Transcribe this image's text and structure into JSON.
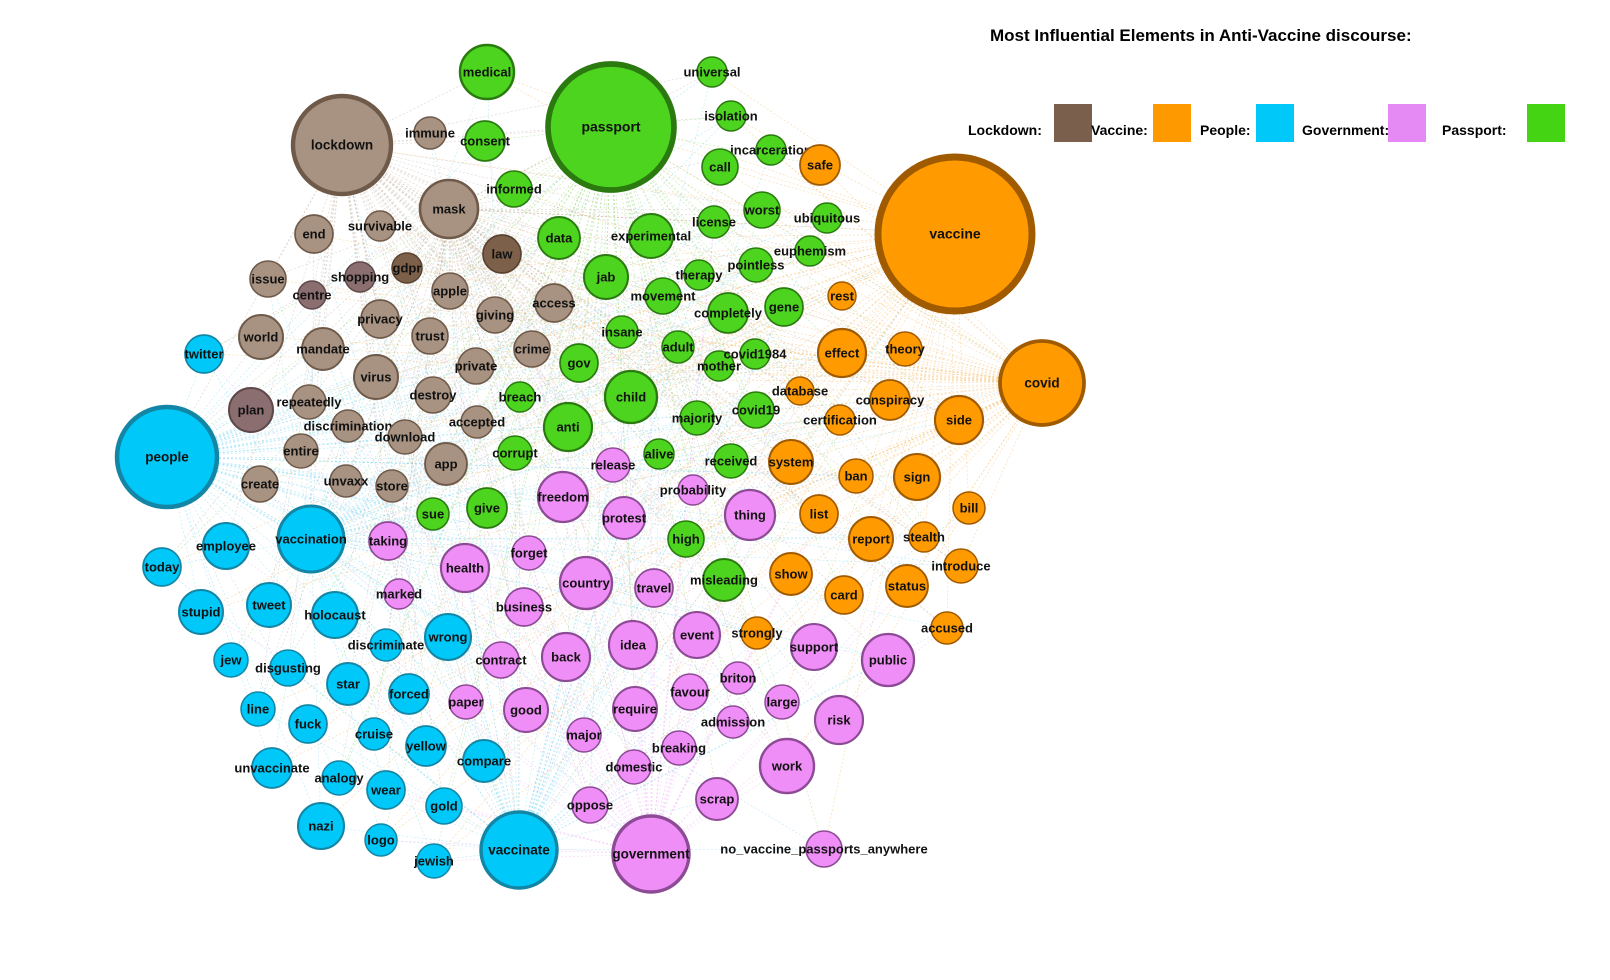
{
  "title": "Most Influential Elements in Anti-Vaccine discourse:",
  "legend": [
    {
      "label": "Lockdown:",
      "color": "#7a5f4d"
    },
    {
      "label": "Vaccine:",
      "color": "#ff9900"
    },
    {
      "label": "People:",
      "color": "#00c8f8"
    },
    {
      "label": "Government:",
      "color": "#e58af5"
    },
    {
      "label": "Passport:",
      "color": "#44d414"
    }
  ],
  "groups": {
    "lockdown": {
      "fill": "#a89382",
      "stroke": "#6f5a4a"
    },
    "lockdown_dark": {
      "fill": "#7d6049",
      "stroke": "#5a4230"
    },
    "lockdown_mauve": {
      "fill": "#8a6e70",
      "stroke": "#5e4748"
    },
    "vaccine": {
      "fill": "#ff9a00",
      "stroke": "#a05a00"
    },
    "people": {
      "fill": "#00c8f8",
      "stroke": "#1386a6"
    },
    "government": {
      "fill": "#f08ef7",
      "stroke": "#8d4b95"
    },
    "passport": {
      "fill": "#4cd41e",
      "stroke": "#2a7a10"
    }
  },
  "nodes": [
    {
      "label": "passport",
      "group": "passport"
    },
    {
      "label": "medical",
      "group": "passport"
    },
    {
      "label": "universal",
      "group": "passport"
    },
    {
      "label": "isolation",
      "group": "passport"
    },
    {
      "label": "consent",
      "group": "passport"
    },
    {
      "label": "incarceration",
      "group": "passport"
    },
    {
      "label": "call",
      "group": "passport"
    },
    {
      "label": "informed",
      "group": "passport"
    },
    {
      "label": "worst",
      "group": "passport"
    },
    {
      "label": "ubiquitous",
      "group": "passport"
    },
    {
      "label": "license",
      "group": "passport"
    },
    {
      "label": "data",
      "group": "passport"
    },
    {
      "label": "experimental",
      "group": "passport"
    },
    {
      "label": "euphemism",
      "group": "passport"
    },
    {
      "label": "pointless",
      "group": "passport"
    },
    {
      "label": "therapy",
      "group": "passport"
    },
    {
      "label": "jab",
      "group": "passport"
    },
    {
      "label": "movement",
      "group": "passport"
    },
    {
      "label": "gene",
      "group": "passport"
    },
    {
      "label": "completely",
      "group": "passport"
    },
    {
      "label": "insane",
      "group": "passport"
    },
    {
      "label": "adult",
      "group": "passport"
    },
    {
      "label": "gov",
      "group": "passport"
    },
    {
      "label": "mother",
      "group": "passport"
    },
    {
      "label": "covid1984",
      "group": "passport"
    },
    {
      "label": "child",
      "group": "passport"
    },
    {
      "label": "breach",
      "group": "passport"
    },
    {
      "label": "majority",
      "group": "passport"
    },
    {
      "label": "covid19",
      "group": "passport"
    },
    {
      "label": "anti",
      "group": "passport"
    },
    {
      "label": "corrupt",
      "group": "passport"
    },
    {
      "label": "alive",
      "group": "passport"
    },
    {
      "label": "received",
      "group": "passport"
    },
    {
      "label": "sue",
      "group": "passport"
    },
    {
      "label": "give",
      "group": "passport"
    },
    {
      "label": "high",
      "group": "passport"
    },
    {
      "label": "misleading",
      "group": "passport"
    },
    {
      "label": "vaccine",
      "group": "vaccine"
    },
    {
      "label": "covid",
      "group": "vaccine"
    },
    {
      "label": "safe",
      "group": "vaccine"
    },
    {
      "label": "rest",
      "group": "vaccine"
    },
    {
      "label": "effect",
      "group": "vaccine"
    },
    {
      "label": "theory",
      "group": "vaccine"
    },
    {
      "label": "database",
      "group": "vaccine"
    },
    {
      "label": "conspiracy",
      "group": "vaccine"
    },
    {
      "label": "side",
      "group": "vaccine"
    },
    {
      "label": "certification",
      "group": "vaccine"
    },
    {
      "label": "system",
      "group": "vaccine"
    },
    {
      "label": "ban",
      "group": "vaccine"
    },
    {
      "label": "sign",
      "group": "vaccine"
    },
    {
      "label": "bill",
      "group": "vaccine"
    },
    {
      "label": "list",
      "group": "vaccine"
    },
    {
      "label": "report",
      "group": "vaccine"
    },
    {
      "label": "stealth",
      "group": "vaccine"
    },
    {
      "label": "introduce",
      "group": "vaccine"
    },
    {
      "label": "show",
      "group": "vaccine"
    },
    {
      "label": "card",
      "group": "vaccine"
    },
    {
      "label": "status",
      "group": "vaccine"
    },
    {
      "label": "accused",
      "group": "vaccine"
    },
    {
      "label": "strongly",
      "group": "vaccine"
    },
    {
      "label": "lockdown",
      "group": "lockdown"
    },
    {
      "label": "immune",
      "group": "lockdown"
    },
    {
      "label": "mask",
      "group": "lockdown"
    },
    {
      "label": "end",
      "group": "lockdown"
    },
    {
      "label": "survivable",
      "group": "lockdown"
    },
    {
      "label": "law",
      "group": "lockdown_dark"
    },
    {
      "label": "issue",
      "group": "lockdown"
    },
    {
      "label": "centre",
      "group": "lockdown_mauve"
    },
    {
      "label": "shopping",
      "group": "lockdown_mauve"
    },
    {
      "label": "gdpr",
      "group": "lockdown_dark"
    },
    {
      "label": "apple",
      "group": "lockdown"
    },
    {
      "label": "access",
      "group": "lockdown"
    },
    {
      "label": "privacy",
      "group": "lockdown"
    },
    {
      "label": "giving",
      "group": "lockdown"
    },
    {
      "label": "world",
      "group": "lockdown"
    },
    {
      "label": "mandate",
      "group": "lockdown"
    },
    {
      "label": "trust",
      "group": "lockdown"
    },
    {
      "label": "crime",
      "group": "lockdown"
    },
    {
      "label": "virus",
      "group": "lockdown"
    },
    {
      "label": "private",
      "group": "lockdown"
    },
    {
      "label": "plan",
      "group": "lockdown_mauve"
    },
    {
      "label": "repeatedly",
      "group": "lockdown"
    },
    {
      "label": "destroy",
      "group": "lockdown"
    },
    {
      "label": "discrimination",
      "group": "lockdown"
    },
    {
      "label": "accepted",
      "group": "lockdown"
    },
    {
      "label": "download",
      "group": "lockdown"
    },
    {
      "label": "entire",
      "group": "lockdown"
    },
    {
      "label": "app",
      "group": "lockdown"
    },
    {
      "label": "unvaxx",
      "group": "lockdown"
    },
    {
      "label": "create",
      "group": "lockdown"
    },
    {
      "label": "store",
      "group": "lockdown"
    },
    {
      "label": "people",
      "group": "people"
    },
    {
      "label": "twitter",
      "group": "people"
    },
    {
      "label": "vaccination",
      "group": "people"
    },
    {
      "label": "employee",
      "group": "people"
    },
    {
      "label": "today",
      "group": "people"
    },
    {
      "label": "stupid",
      "group": "people"
    },
    {
      "label": "tweet",
      "group": "people"
    },
    {
      "label": "holocaust",
      "group": "people"
    },
    {
      "label": "wrong",
      "group": "people"
    },
    {
      "label": "discriminate",
      "group": "people"
    },
    {
      "label": "jew",
      "group": "people"
    },
    {
      "label": "disgusting",
      "group": "people"
    },
    {
      "label": "star",
      "group": "people"
    },
    {
      "label": "forced",
      "group": "people"
    },
    {
      "label": "line",
      "group": "people"
    },
    {
      "label": "fuck",
      "group": "people"
    },
    {
      "label": "cruise",
      "group": "people"
    },
    {
      "label": "yellow",
      "group": "people"
    },
    {
      "label": "compare",
      "group": "people"
    },
    {
      "label": "unvaccinate",
      "group": "people"
    },
    {
      "label": "analogy",
      "group": "people"
    },
    {
      "label": "wear",
      "group": "people"
    },
    {
      "label": "gold",
      "group": "people"
    },
    {
      "label": "nazi",
      "group": "people"
    },
    {
      "label": "logo",
      "group": "people"
    },
    {
      "label": "jewish",
      "group": "people"
    },
    {
      "label": "vaccinate",
      "group": "people"
    },
    {
      "label": "marked",
      "group": "government"
    },
    {
      "label": "taking",
      "group": "government"
    },
    {
      "label": "freedom",
      "group": "government"
    },
    {
      "label": "release",
      "group": "government"
    },
    {
      "label": "protest",
      "group": "government"
    },
    {
      "label": "probability",
      "group": "government"
    },
    {
      "label": "thing",
      "group": "government"
    },
    {
      "label": "health",
      "group": "government"
    },
    {
      "label": "forget",
      "group": "government"
    },
    {
      "label": "country",
      "group": "government"
    },
    {
      "label": "business",
      "group": "government"
    },
    {
      "label": "travel",
      "group": "government"
    },
    {
      "label": "contract",
      "group": "government"
    },
    {
      "label": "back",
      "group": "government"
    },
    {
      "label": "idea",
      "group": "government"
    },
    {
      "label": "event",
      "group": "government"
    },
    {
      "label": "support",
      "group": "government"
    },
    {
      "label": "public",
      "group": "government"
    },
    {
      "label": "briton",
      "group": "government"
    },
    {
      "label": "paper",
      "group": "government"
    },
    {
      "label": "good",
      "group": "government"
    },
    {
      "label": "require",
      "group": "government"
    },
    {
      "label": "favour",
      "group": "government"
    },
    {
      "label": "large",
      "group": "government"
    },
    {
      "label": "risk",
      "group": "government"
    },
    {
      "label": "admission",
      "group": "government"
    },
    {
      "label": "major",
      "group": "government"
    },
    {
      "label": "breaking",
      "group": "government"
    },
    {
      "label": "domestic",
      "group": "government"
    },
    {
      "label": "work",
      "group": "government"
    },
    {
      "label": "scrap",
      "group": "government"
    },
    {
      "label": "oppose",
      "group": "government"
    },
    {
      "label": "government",
      "group": "government"
    },
    {
      "label": "no_vaccine_passports_anywhere",
      "group": "government"
    }
  ]
}
